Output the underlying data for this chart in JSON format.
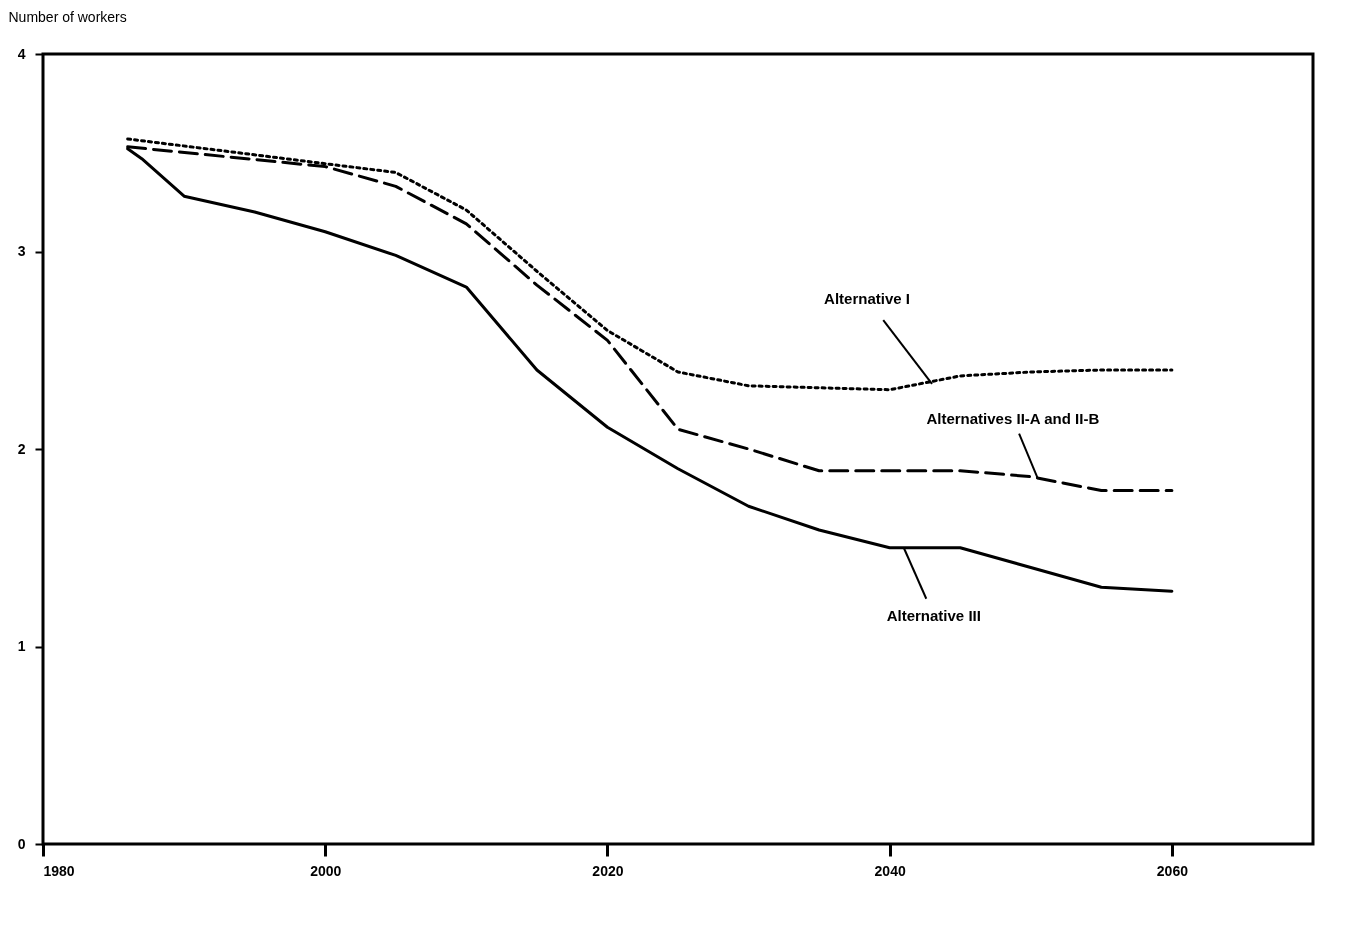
{
  "chart_data": {
    "type": "line",
    "ylabel": "Number of workers",
    "xlim": [
      1980,
      2070
    ],
    "ylim": [
      0,
      4
    ],
    "xticks": [
      1980,
      2000,
      2020,
      2040,
      2060
    ],
    "yticks": [
      0,
      1,
      2,
      3,
      4
    ],
    "grid": false,
    "marker": "none",
    "series": [
      {
        "color": "#000000",
        "line_style": "dotted",
        "x": [
          1986,
          2005,
          2010,
          2015,
          2020,
          2025,
          2030,
          2040,
          2045,
          2050,
          2055,
          2060
        ],
        "values": [
          3.57,
          3.4,
          3.21,
          2.9,
          2.6,
          2.39,
          2.32,
          2.3,
          2.37,
          2.39,
          2.4,
          2.4
        ]
      },
      {
        "color": "#000000",
        "line_style": "dashed",
        "x": [
          1986,
          2000,
          2005,
          2010,
          2015,
          2020,
          2025,
          2030,
          2035,
          2040,
          2045,
          2050,
          2055,
          2060
        ],
        "values": [
          3.53,
          3.43,
          3.33,
          3.14,
          2.83,
          2.55,
          2.1,
          2.0,
          1.89,
          1.89,
          1.89,
          1.86,
          1.79,
          1.79
        ]
      },
      {
        "color": "#000000",
        "line_style": "solid",
        "x": [
          1986,
          1987,
          1990,
          1995,
          2000,
          2005,
          2010,
          2015,
          2020,
          2025,
          2030,
          2035,
          2040,
          2045,
          2050,
          2055,
          2060
        ],
        "values": [
          3.52,
          3.47,
          3.28,
          3.2,
          3.1,
          2.98,
          2.82,
          2.4,
          2.11,
          1.9,
          1.71,
          1.59,
          1.5,
          1.5,
          1.4,
          1.3,
          1.28
        ]
      }
    ],
    "annotations": [
      {
        "text": "Alternative I",
        "x": 2043,
        "y": 2.33
      },
      {
        "text": "Alternatives II-A and II-B",
        "x": 2050.5,
        "y": 1.85
      },
      {
        "text": "Alternative III",
        "x": 2041,
        "y": 1.5
      }
    ]
  }
}
